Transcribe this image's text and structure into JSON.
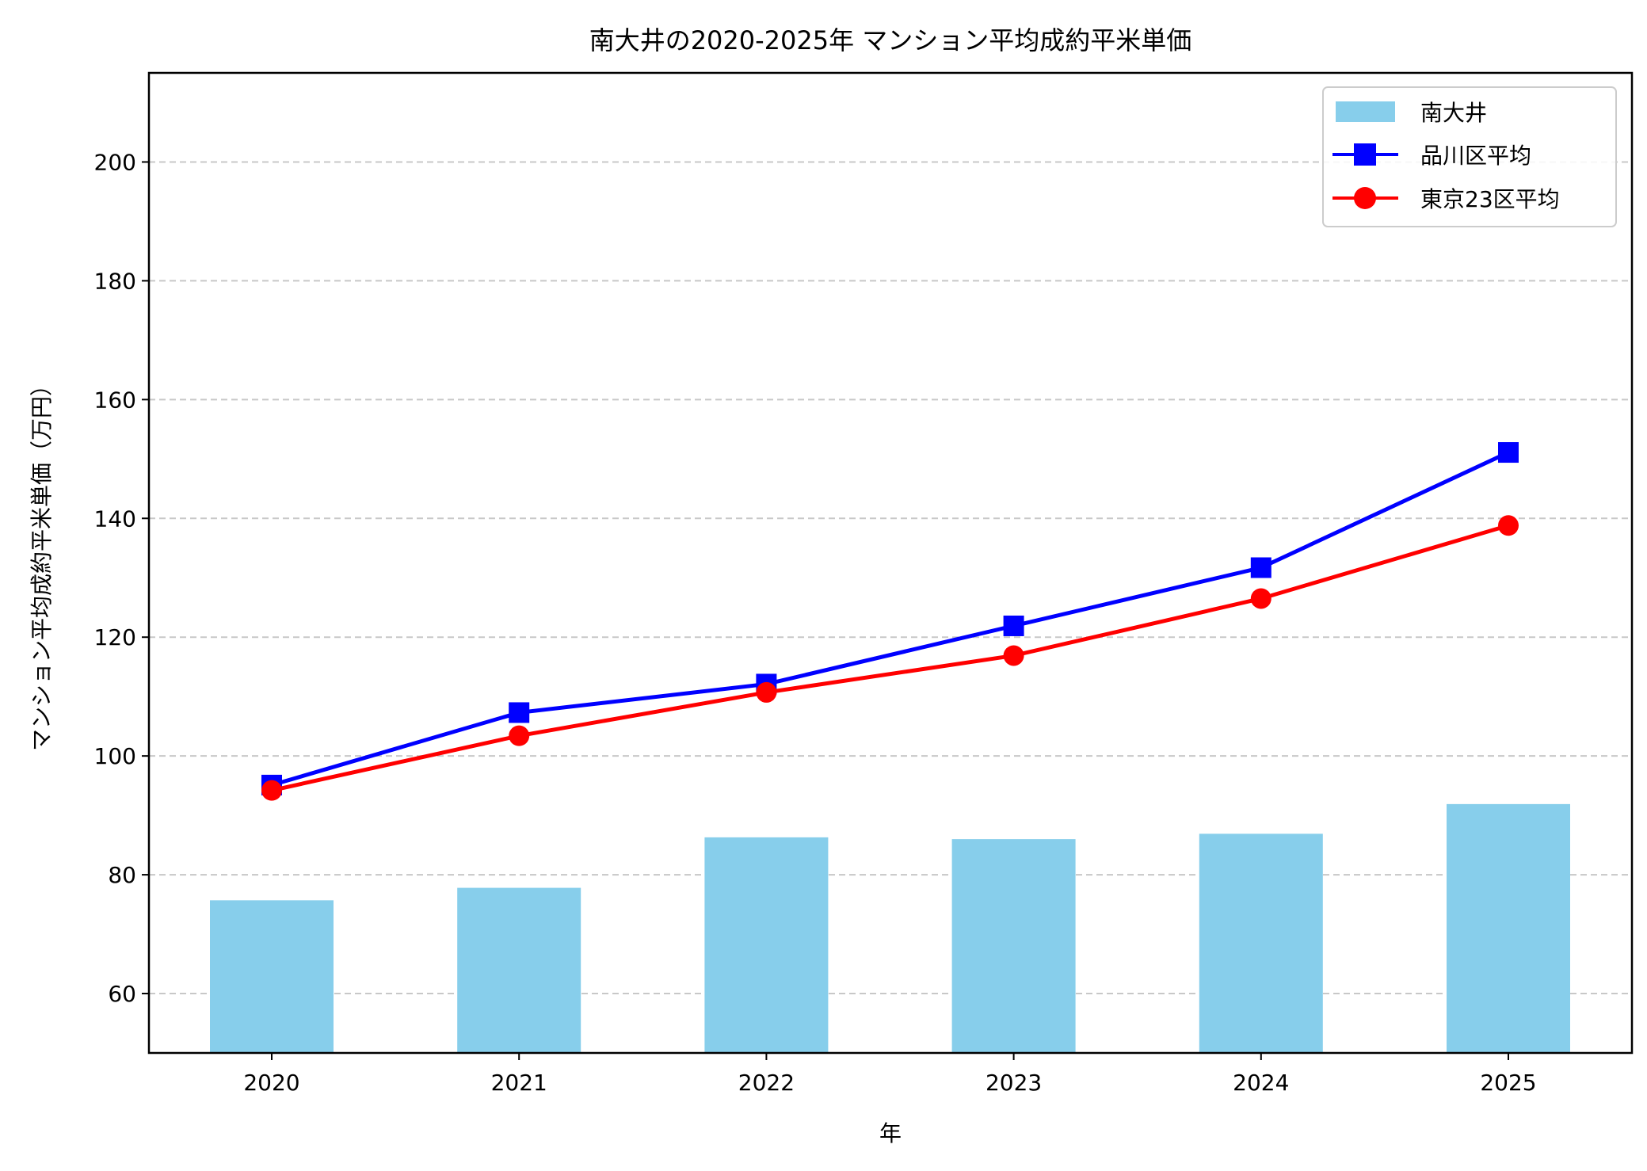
{
  "chart_data": {
    "type": "bar+line",
    "title": "南大井の2020-2025年 マンション平均成約平米単価",
    "xlabel": "年",
    "ylabel": "マンション平均成約平米単価（万円）",
    "categories": [
      "2020",
      "2021",
      "2022",
      "2023",
      "2024",
      "2025"
    ],
    "ylim": [
      50,
      215
    ],
    "yticks": [
      60,
      80,
      100,
      120,
      140,
      160,
      180,
      200
    ],
    "grid": "y-dashed",
    "legend_position": "top-right",
    "series": [
      {
        "name": "南大井",
        "kind": "bar",
        "color": "#87CEEB",
        "values": [
          75.7,
          77.8,
          86.3,
          86.0,
          86.9,
          91.9
        ]
      },
      {
        "name": "品川区平均",
        "kind": "line",
        "marker": "square",
        "color": "#0000FF",
        "values": [
          95.1,
          107.3,
          112.1,
          121.9,
          131.7,
          151.1
        ]
      },
      {
        "name": "東京23区平均",
        "kind": "line",
        "marker": "circle",
        "color": "#FF0000",
        "values": [
          94.2,
          103.4,
          110.7,
          116.9,
          126.5,
          138.8
        ]
      }
    ]
  }
}
